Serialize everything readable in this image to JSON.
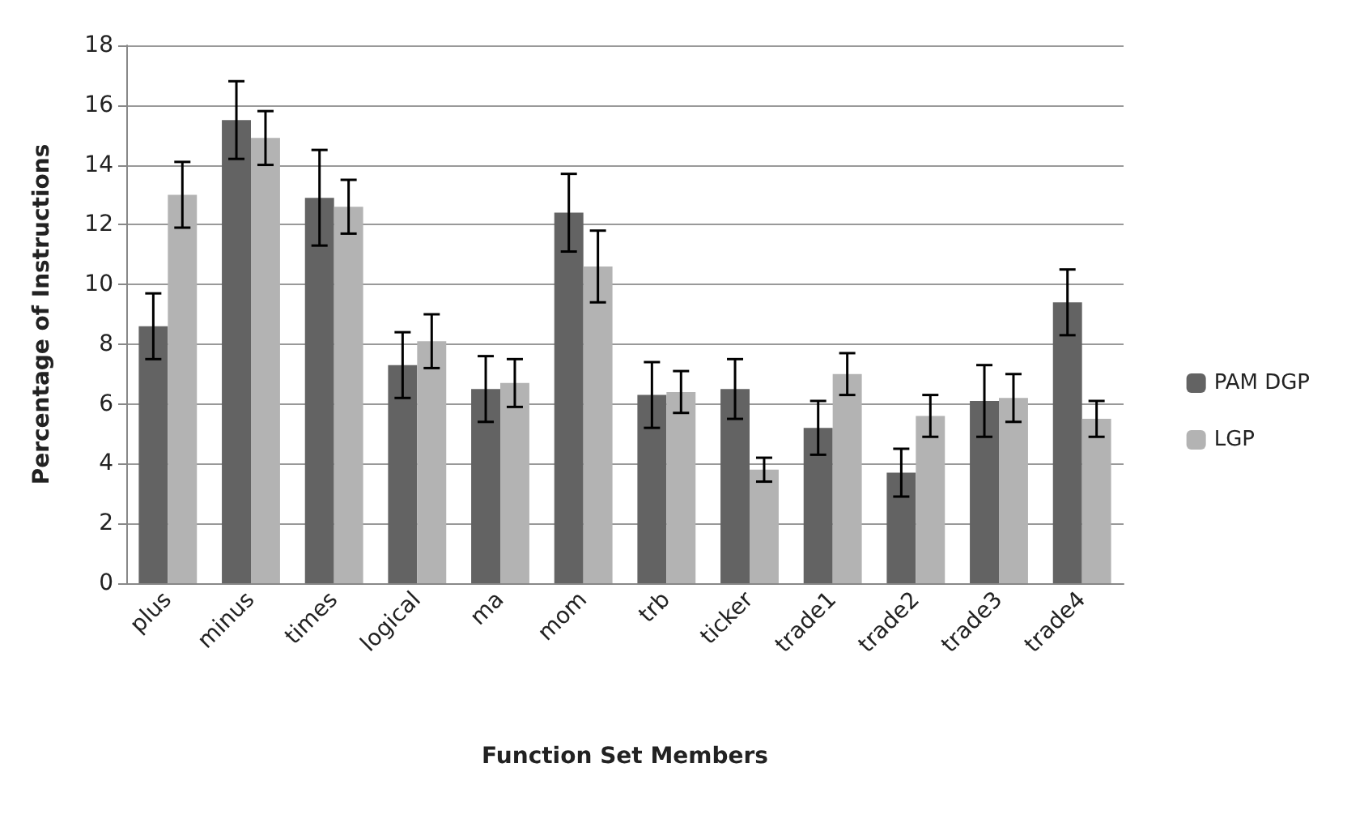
{
  "chart_data": {
    "type": "bar",
    "xlabel": "Function Set Members",
    "ylabel": "Percentage of Instructions",
    "categories": [
      "plus",
      "minus",
      "times",
      "logical",
      "ma",
      "mom",
      "trb",
      "ticker",
      "trade1",
      "trade2",
      "trade3",
      "trade4"
    ],
    "series": [
      {
        "name": "PAM DGP",
        "color": "#636363",
        "values": [
          8.6,
          15.5,
          12.9,
          7.3,
          6.5,
          12.4,
          6.3,
          6.5,
          5.2,
          3.7,
          6.1,
          9.4
        ],
        "errors": [
          1.1,
          1.3,
          1.6,
          1.1,
          1.1,
          1.3,
          1.1,
          1.0,
          0.9,
          0.8,
          1.2,
          1.1
        ]
      },
      {
        "name": "LGP",
        "color": "#b3b3b3",
        "values": [
          13.0,
          14.9,
          12.6,
          8.1,
          6.7,
          10.6,
          6.4,
          3.8,
          7.0,
          5.6,
          6.2,
          5.5
        ],
        "errors": [
          1.1,
          0.9,
          0.9,
          0.9,
          0.8,
          1.2,
          0.7,
          0.4,
          0.7,
          0.7,
          0.8,
          0.6
        ]
      }
    ],
    "ylim": [
      0,
      18
    ],
    "yticks": [
      0,
      2,
      4,
      6,
      8,
      10,
      12,
      14,
      16,
      18
    ],
    "grid": "y",
    "legend": "right"
  }
}
